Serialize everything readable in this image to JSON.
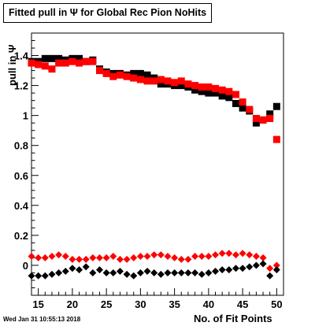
{
  "chart_data": {
    "type": "scatter",
    "title": "Fitted pull in Ψ  for Global Rec Pion NoHits",
    "xlabel": "No. of Fit Points",
    "ylabel": "pull in Ψ",
    "xlim": [
      14,
      51
    ],
    "ylim": [
      -0.2,
      1.55
    ],
    "xticks": [
      15,
      20,
      25,
      30,
      35,
      40,
      45,
      50
    ],
    "yticks": [
      0,
      0.2,
      0.4,
      0.6,
      0.8,
      1,
      1.2,
      1.4
    ],
    "ytick_labels": [
      "0",
      "0.2",
      "0.4",
      "0.6",
      "0.8",
      "1",
      "1.2",
      "1.4"
    ],
    "grid": false,
    "x": [
      14,
      15,
      16,
      17,
      18,
      19,
      20,
      21,
      22,
      23,
      24,
      25,
      26,
      27,
      28,
      29,
      30,
      31,
      32,
      33,
      34,
      35,
      36,
      37,
      38,
      39,
      40,
      41,
      42,
      43,
      44,
      45,
      46,
      47,
      48,
      49,
      50
    ],
    "series": [
      {
        "color": "#000000",
        "marker": "square",
        "values": [
          1.36,
          1.36,
          1.38,
          1.38,
          1.38,
          1.37,
          1.38,
          1.38,
          1.36,
          1.37,
          1.31,
          1.29,
          1.28,
          1.28,
          1.27,
          1.28,
          1.28,
          1.27,
          1.25,
          1.21,
          1.21,
          1.2,
          1.2,
          1.19,
          1.17,
          1.16,
          1.15,
          1.15,
          1.13,
          1.12,
          1.08,
          1.05,
          1.03,
          0.95,
          0.97,
          1.01,
          1.06
        ]
      },
      {
        "color": "#ff0000",
        "marker": "square",
        "values": [
          1.35,
          1.34,
          1.33,
          1.31,
          1.35,
          1.35,
          1.36,
          1.35,
          1.36,
          1.36,
          1.3,
          1.28,
          1.26,
          1.27,
          1.26,
          1.25,
          1.24,
          1.23,
          1.23,
          1.24,
          1.23,
          1.22,
          1.23,
          1.21,
          1.2,
          1.19,
          1.19,
          1.18,
          1.17,
          1.16,
          1.14,
          1.09,
          1.04,
          0.98,
          0.97,
          0.98,
          0.84
        ]
      },
      {
        "color": "#ff0000",
        "marker": "diamond",
        "values": [
          0.06,
          0.05,
          0.05,
          0.06,
          0.07,
          0.06,
          0.04,
          0.04,
          0.04,
          0.05,
          0.05,
          0.05,
          0.06,
          0.04,
          0.04,
          0.05,
          0.06,
          0.06,
          0.07,
          0.07,
          0.06,
          0.05,
          0.04,
          0.04,
          0.06,
          0.06,
          0.06,
          0.07,
          0.08,
          0.08,
          0.07,
          0.08,
          0.07,
          0.06,
          0.05,
          -0.02,
          0.0
        ]
      },
      {
        "color": "#000000",
        "marker": "diamond",
        "values": [
          -0.07,
          -0.07,
          -0.07,
          -0.06,
          -0.05,
          -0.04,
          -0.02,
          -0.03,
          -0.01,
          -0.05,
          -0.03,
          -0.05,
          -0.05,
          -0.04,
          -0.06,
          -0.07,
          -0.05,
          -0.04,
          -0.05,
          -0.06,
          -0.05,
          -0.05,
          -0.05,
          -0.05,
          -0.05,
          -0.06,
          -0.05,
          -0.04,
          -0.03,
          -0.03,
          -0.02,
          -0.02,
          -0.01,
          0.0,
          0.01,
          -0.07,
          -0.03
        ]
      }
    ]
  },
  "footer": {
    "date": "Wed Jan 31 10:55:13 2018"
  }
}
